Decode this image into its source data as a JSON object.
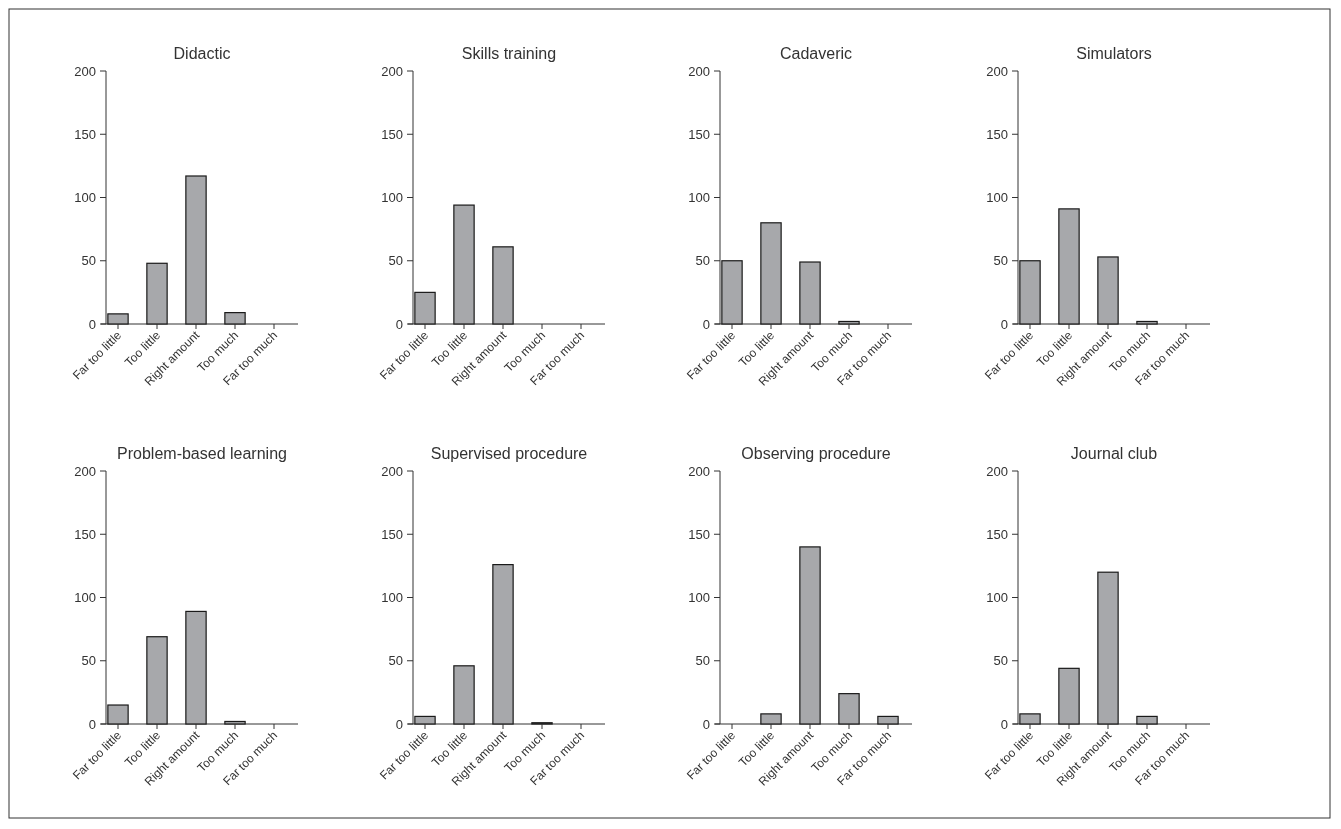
{
  "chart_data": [
    {
      "type": "bar",
      "title": "Didactic",
      "categories": [
        "Far too little",
        "Too little",
        "Right amount",
        "Too much",
        "Far too much"
      ],
      "values": [
        8,
        48,
        117,
        9,
        0
      ],
      "color": "#a7a8ab",
      "ylim": [
        0,
        200
      ],
      "yticks": [
        0,
        50,
        100,
        150,
        200
      ]
    },
    {
      "type": "bar",
      "title": "Skills training",
      "categories": [
        "Far too little",
        "Too little",
        "Right amount",
        "Too much",
        "Far too much"
      ],
      "values": [
        25,
        94,
        61,
        0,
        0
      ],
      "color": "#a7a8ab",
      "ylim": [
        0,
        200
      ],
      "yticks": [
        0,
        50,
        100,
        150,
        200
      ]
    },
    {
      "type": "bar",
      "title": "Cadaveric",
      "categories": [
        "Far too little",
        "Too little",
        "Right amount",
        "Too much",
        "Far too much"
      ],
      "values": [
        50,
        80,
        49,
        2,
        0
      ],
      "color": "#a7a8ab",
      "ylim": [
        0,
        200
      ],
      "yticks": [
        0,
        50,
        100,
        150,
        200
      ]
    },
    {
      "type": "bar",
      "title": "Simulators",
      "categories": [
        "Far too little",
        "Too little",
        "Right amount",
        "Too much",
        "Far too much"
      ],
      "values": [
        50,
        91,
        53,
        2,
        0
      ],
      "color": "#a7a8ab",
      "ylim": [
        0,
        200
      ],
      "yticks": [
        0,
        50,
        100,
        150,
        200
      ]
    },
    {
      "type": "bar",
      "title": "Problem-based learning",
      "categories": [
        "Far too little",
        "Too little",
        "Right amount",
        "Too much",
        "Far too much"
      ],
      "values": [
        15,
        69,
        89,
        2,
        0
      ],
      "color": "#a7a8ab",
      "ylim": [
        0,
        200
      ],
      "yticks": [
        0,
        50,
        100,
        150,
        200
      ]
    },
    {
      "type": "bar",
      "title": "Supervised procedure",
      "categories": [
        "Far too little",
        "Too little",
        "Right amount",
        "Too much",
        "Far too much"
      ],
      "values": [
        6,
        46,
        126,
        1,
        0
      ],
      "color": "#a7a8ab",
      "ylim": [
        0,
        200
      ],
      "yticks": [
        0,
        50,
        100,
        150,
        200
      ]
    },
    {
      "type": "bar",
      "title": "Observing procedure",
      "categories": [
        "Far too little",
        "Too little",
        "Right amount",
        "Too much",
        "Far too much"
      ],
      "values": [
        0,
        8,
        140,
        24,
        6
      ],
      "color": "#a7a8ab",
      "ylim": [
        0,
        200
      ],
      "yticks": [
        0,
        50,
        100,
        150,
        200
      ]
    },
    {
      "type": "bar",
      "title": "Journal club",
      "categories": [
        "Far too little",
        "Too little",
        "Right amount",
        "Too much",
        "Far too much"
      ],
      "values": [
        8,
        44,
        120,
        6,
        0
      ],
      "color": "#a7a8ab",
      "ylim": [
        0,
        200
      ],
      "yticks": [
        0,
        50,
        100,
        150,
        200
      ]
    }
  ]
}
